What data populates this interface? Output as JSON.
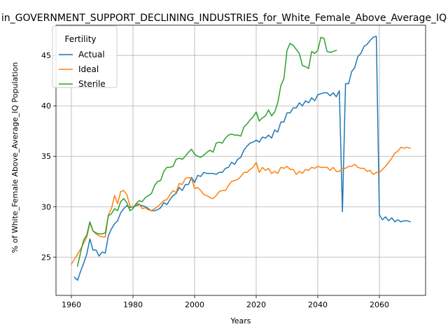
{
  "chart_data": {
    "type": "line",
    "title": "in_GOVERNMENT_SUPPORT_DECLINING_INDUSTRIES_for_White_Female_Above_Average_IQ",
    "xlabel": "Years",
    "ylabel": "% of White_Female Above_Average_IQ Population",
    "xlim": [
      1955,
      2075
    ],
    "ylim": [
      21.2,
      48.0
    ],
    "x_ticks": [
      1960,
      1980,
      2000,
      2020,
      2040,
      2060
    ],
    "y_ticks": [
      25,
      30,
      35,
      40,
      45
    ],
    "grid": true,
    "legend": {
      "title": "Fertility",
      "position": "upper-left"
    },
    "series": [
      {
        "name": "Actual",
        "color": "#1f77b4",
        "x": [
          1961,
          1962,
          1963,
          1964,
          1965,
          1966,
          1967,
          1968,
          1969,
          1970,
          1971,
          1972,
          1973,
          1974,
          1975,
          1976,
          1977,
          1978,
          1979,
          1980,
          1981,
          1982,
          1983,
          1984,
          1985,
          1986,
          1987,
          1988,
          1989,
          1990,
          1991,
          1992,
          1993,
          1994,
          1995,
          1996,
          1997,
          1998,
          1999,
          2000,
          2001,
          2002,
          2003,
          2004,
          2005,
          2006,
          2007,
          2008,
          2009,
          2010,
          2011,
          2012,
          2013,
          2014,
          2015,
          2016,
          2017,
          2018,
          2019,
          2020,
          2021,
          2022,
          2023,
          2024,
          2025,
          2026,
          2027,
          2028,
          2029,
          2030,
          2031,
          2032,
          2033,
          2034,
          2035,
          2036,
          2037,
          2038,
          2039,
          2040,
          2041,
          2042,
          2043,
          2044,
          2045,
          2046,
          2047,
          2048,
          2049,
          2050,
          2051,
          2052,
          2053,
          2054,
          2055,
          2056,
          2057,
          2058,
          2059,
          2060,
          2061,
          2062,
          2063,
          2064,
          2065,
          2066,
          2067,
          2068,
          2069,
          2070
        ],
        "y": [
          23.0,
          22.7,
          23.6,
          24.4,
          25.3,
          26.8,
          25.7,
          25.7,
          25.1,
          25.5,
          25.4,
          27.1,
          27.8,
          28.3,
          28.6,
          29.4,
          29.8,
          30.1,
          29.9,
          30.0,
          30.1,
          30.2,
          30.1,
          30.0,
          29.8,
          29.6,
          29.6,
          29.7,
          29.9,
          30.4,
          30.2,
          30.7,
          31.1,
          31.3,
          31.9,
          31.6,
          32.2,
          32.2,
          32.9,
          32.4,
          33.1,
          33.0,
          33.4,
          33.3,
          33.3,
          33.3,
          33.2,
          33.4,
          33.4,
          33.8,
          33.9,
          34.4,
          34.2,
          34.7,
          34.9,
          35.6,
          36.0,
          36.3,
          36.4,
          36.6,
          36.4,
          36.9,
          36.8,
          37.1,
          36.8,
          37.6,
          37.4,
          38.4,
          38.4,
          39.3,
          39.3,
          39.8,
          39.8,
          40.3,
          40.0,
          40.5,
          40.3,
          40.8,
          40.5,
          41.1,
          41.2,
          41.3,
          41.3,
          41.0,
          41.3,
          40.9,
          41.5,
          29.5,
          42.2,
          42.2,
          43.4,
          43.8,
          44.9,
          45.2,
          45.9,
          46.1,
          46.5,
          46.8,
          46.9,
          29.2,
          28.7,
          29.0,
          28.6,
          28.9,
          28.5,
          28.7,
          28.5,
          28.6,
          28.6,
          28.5
        ]
      },
      {
        "name": "Ideal",
        "color": "#ff7f0e",
        "x": [
          1960,
          1961,
          1962,
          1963,
          1964,
          1965,
          1966,
          1967,
          1968,
          1969,
          1970,
          1971,
          1972,
          1973,
          1974,
          1975,
          1976,
          1977,
          1978,
          1979,
          1980,
          1981,
          1982,
          1983,
          1984,
          1985,
          1986,
          1987,
          1988,
          1989,
          1990,
          1991,
          1992,
          1993,
          1994,
          1995,
          1996,
          1997,
          1998,
          1999,
          2000,
          2001,
          2002,
          2003,
          2004,
          2005,
          2006,
          2007,
          2008,
          2009,
          2010,
          2011,
          2012,
          2013,
          2014,
          2015,
          2016,
          2017,
          2018,
          2019,
          2020,
          2021,
          2022,
          2023,
          2024,
          2025,
          2026,
          2027,
          2028,
          2029,
          2030,
          2031,
          2032,
          2033,
          2034,
          2035,
          2036,
          2037,
          2038,
          2039,
          2040,
          2041,
          2042,
          2043,
          2044,
          2045,
          2046,
          2047,
          2048,
          2049,
          2050,
          2051,
          2052,
          2053,
          2054,
          2055,
          2056,
          2057,
          2058,
          2059,
          2060,
          2061,
          2062,
          2063,
          2064,
          2065,
          2066,
          2067,
          2068,
          2069,
          2070
        ],
        "y": [
          24.3,
          24.8,
          25.3,
          25.8,
          26.4,
          27.0,
          28.4,
          27.6,
          27.3,
          27.1,
          27.0,
          27.0,
          29.2,
          29.8,
          31.1,
          30.3,
          31.5,
          31.6,
          31.2,
          30.1,
          29.9,
          30.2,
          30.3,
          29.8,
          29.9,
          29.7,
          29.6,
          29.8,
          30.0,
          30.3,
          30.6,
          30.7,
          31.2,
          31.6,
          31.4,
          32.3,
          32.2,
          32.8,
          32.9,
          32.8,
          31.8,
          31.9,
          31.6,
          31.2,
          31.1,
          30.9,
          30.8,
          31.1,
          31.5,
          31.6,
          31.6,
          32.1,
          32.5,
          32.6,
          32.7,
          33.0,
          33.4,
          33.4,
          33.7,
          33.9,
          34.4,
          33.4,
          33.9,
          33.6,
          33.8,
          33.3,
          33.5,
          33.3,
          33.9,
          33.8,
          34.0,
          33.7,
          33.7,
          33.2,
          33.5,
          33.3,
          33.7,
          33.6,
          33.9,
          33.8,
          34.0,
          33.9,
          33.9,
          33.9,
          33.6,
          33.9,
          33.5,
          33.5,
          33.8,
          33.8,
          34.0,
          34.0,
          34.2,
          33.9,
          33.8,
          33.8,
          33.5,
          33.6,
          33.2,
          33.4,
          33.4,
          33.7,
          34.0,
          34.4,
          34.8,
          35.3,
          35.5,
          35.9,
          35.8,
          35.9,
          35.8
        ]
      },
      {
        "name": "Sterile",
        "color": "#2ca02c",
        "x": [
          1962,
          1963,
          1964,
          1965,
          1966,
          1967,
          1968,
          1969,
          1970,
          1971,
          1972,
          1973,
          1974,
          1975,
          1976,
          1977,
          1978,
          1979,
          1980,
          1981,
          1982,
          1983,
          1984,
          1985,
          1986,
          1987,
          1988,
          1989,
          1990,
          1991,
          1992,
          1993,
          1994,
          1995,
          1996,
          1997,
          1998,
          1999,
          2000,
          2001,
          2002,
          2003,
          2004,
          2005,
          2006,
          2007,
          2008,
          2009,
          2010,
          2011,
          2012,
          2013,
          2014,
          2015,
          2016,
          2017,
          2018,
          2019,
          2020,
          2021,
          2022,
          2023,
          2024,
          2025,
          2026,
          2027,
          2028,
          2029,
          2030,
          2031,
          2032,
          2033,
          2034,
          2035,
          2036,
          2037,
          2038,
          2039,
          2040,
          2041,
          2042,
          2043,
          2044,
          2045,
          2046
        ],
        "y": [
          24.1,
          25.5,
          26.7,
          27.2,
          28.5,
          27.6,
          27.4,
          27.3,
          27.3,
          27.4,
          29.1,
          29.3,
          29.8,
          29.6,
          30.5,
          30.8,
          30.4,
          29.6,
          29.8,
          30.3,
          30.6,
          30.5,
          30.9,
          31.1,
          31.3,
          32.1,
          32.5,
          32.6,
          33.5,
          33.9,
          33.9,
          34.0,
          34.7,
          34.8,
          34.7,
          35.0,
          35.4,
          35.7,
          35.2,
          35.0,
          34.9,
          35.1,
          35.4,
          35.6,
          35.4,
          36.3,
          36.4,
          36.3,
          36.8,
          37.1,
          37.2,
          37.1,
          37.1,
          37.0,
          37.9,
          38.2,
          38.6,
          38.9,
          39.4,
          38.5,
          38.8,
          39.0,
          39.6,
          39.0,
          39.4,
          40.3,
          42.0,
          42.7,
          45.5,
          46.2,
          46.0,
          45.6,
          45.2,
          44.0,
          43.9,
          43.7,
          45.4,
          45.2,
          45.5,
          46.8,
          46.7,
          45.4,
          45.3,
          45.4,
          45.5
        ]
      }
    ]
  }
}
